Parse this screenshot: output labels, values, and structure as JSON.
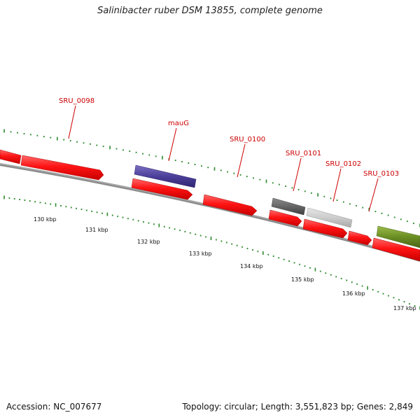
{
  "title": "Salinibacter ruber DSM 13855, complete genome",
  "footer": {
    "accession": "Accession: NC_007677",
    "info": "Topology: circular; Length: 3,551,823 bp; Genes: 2,849"
  },
  "colors": {
    "backbone": "#808080",
    "cds": "#ff1a1a",
    "tick": "#2e8b2e",
    "label": "#cc0000",
    "mauG": "#4b3f9a",
    "SRU_0101": "#666666",
    "SRU_0102": "#cccccc",
    "right_edge_gene": "#6b8e23"
  },
  "scale_labels": [
    "130 kbp",
    "131 kbp",
    "132 kbp",
    "133 kbp",
    "134 kbp",
    "135 kbp",
    "136 kbp",
    "137 kbp"
  ],
  "gene_labels": [
    "SRU_0098",
    "mauG",
    "SRU_0100",
    "SRU_0101",
    "SRU_0102",
    "SRU_0103"
  ]
}
